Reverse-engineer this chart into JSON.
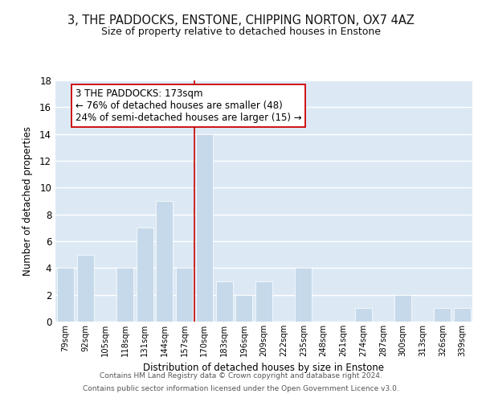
{
  "title": "3, THE PADDOCKS, ENSTONE, CHIPPING NORTON, OX7 4AZ",
  "subtitle": "Size of property relative to detached houses in Enstone",
  "xlabel": "Distribution of detached houses by size in Enstone",
  "ylabel": "Number of detached properties",
  "categories": [
    "79sqm",
    "92sqm",
    "105sqm",
    "118sqm",
    "131sqm",
    "144sqm",
    "157sqm",
    "170sqm",
    "183sqm",
    "196sqm",
    "209sqm",
    "222sqm",
    "235sqm",
    "248sqm",
    "261sqm",
    "274sqm",
    "287sqm",
    "300sqm",
    "313sqm",
    "326sqm",
    "339sqm"
  ],
  "values": [
    4,
    5,
    0,
    4,
    7,
    9,
    4,
    14,
    3,
    2,
    3,
    0,
    4,
    0,
    0,
    1,
    0,
    2,
    0,
    1,
    1
  ],
  "bar_color": "#c6d9ea",
  "bar_edge_color": "#ffffff",
  "grid_color": "#ffffff",
  "bg_color": "#dce9f5",
  "reference_line_color": "#cc0000",
  "annotation_text_line1": "3 THE PADDOCKS: 173sqm",
  "annotation_text_line2": "← 76% of detached houses are smaller (48)",
  "annotation_text_line3": "24% of semi-detached houses are larger (15) →",
  "annotation_box_color": "#ffffff",
  "annotation_box_edge_color": "#cc0000",
  "ylim": [
    0,
    18
  ],
  "yticks": [
    0,
    2,
    4,
    6,
    8,
    10,
    12,
    14,
    16,
    18
  ],
  "footer_line1": "Contains HM Land Registry data © Crown copyright and database right 2024.",
  "footer_line2": "Contains public sector information licensed under the Open Government Licence v3.0."
}
